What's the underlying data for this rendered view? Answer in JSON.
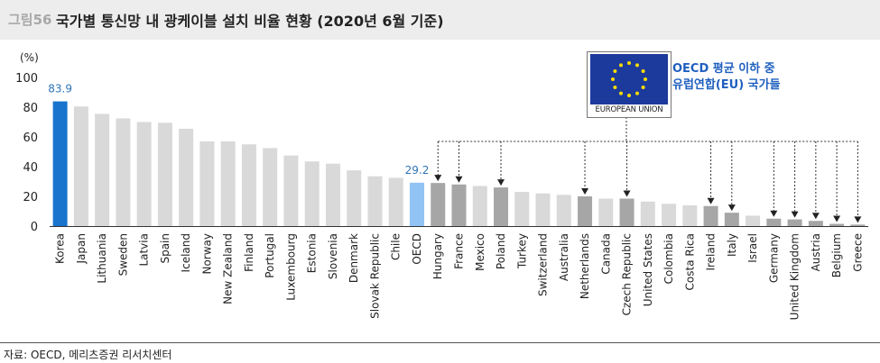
{
  "header": {
    "figure_label": "그림56",
    "title": "국가별 통신망 내 광케이블 설치 비율 현황 (2020년 6월 기준)"
  },
  "source": "자료: OECD, 메리츠증권 리서치센터",
  "callout": {
    "emblem_caption": "EUROPEAN UNION",
    "line1": "OECD 평균 이하 중",
    "line2": "유럽연합(EU) 국가들"
  },
  "colors": {
    "korea": "#1874cd",
    "oecd": "#91c3f5",
    "eu_below_avg": "#a6a6a6",
    "others": "#d9d9d9",
    "label_blue": "#2e75b6",
    "flag": "#1c3a9c",
    "stars": "#ffdd00"
  },
  "chart_data": {
    "type": "bar",
    "unit_label": "(%)",
    "ylim": [
      0,
      100
    ],
    "yticks": [
      0,
      20,
      40,
      60,
      80,
      100
    ],
    "categories": [
      "Korea",
      "Japan",
      "Lithuania",
      "Sweden",
      "Latvia",
      "Spain",
      "Iceland",
      "Norway",
      "New Zealand",
      "Finland",
      "Portugal",
      "Luxembourg",
      "Estonia",
      "Slovenia",
      "Denmark",
      "Slovak Republic",
      "Chile",
      "OECD",
      "Hungary",
      "France",
      "Mexico",
      "Poland",
      "Turkey",
      "Switzerland",
      "Australia",
      "Netherlands",
      "Canada",
      "Czech Republic",
      "United States",
      "Colombia",
      "Costa Rica",
      "Ireland",
      "Italy",
      "Israel",
      "Germany",
      "United Kingdom",
      "Austria",
      "Belgium",
      "Greece"
    ],
    "values": [
      83.9,
      80.5,
      75.5,
      72.5,
      70,
      69.5,
      65.5,
      57,
      57,
      55,
      52.5,
      47.5,
      43.5,
      42,
      37.5,
      33.5,
      32.5,
      29.2,
      29,
      28,
      27,
      26,
      23,
      22,
      21,
      20,
      18.5,
      18.5,
      16.5,
      15,
      14,
      13.5,
      9,
      7,
      5,
      4.5,
      3.5,
      1.5,
      1
    ],
    "highlight": [
      "Korea",
      "OECD"
    ],
    "eu_below_avg": [
      "Hungary",
      "France",
      "Poland",
      "Netherlands",
      "Czech Republic",
      "Ireland",
      "Italy",
      "Germany",
      "United Kingdom",
      "Austria",
      "Belgium",
      "Greece"
    ],
    "data_labels": {
      "Korea": "83.9",
      "OECD": "29.2"
    },
    "grid": false
  }
}
